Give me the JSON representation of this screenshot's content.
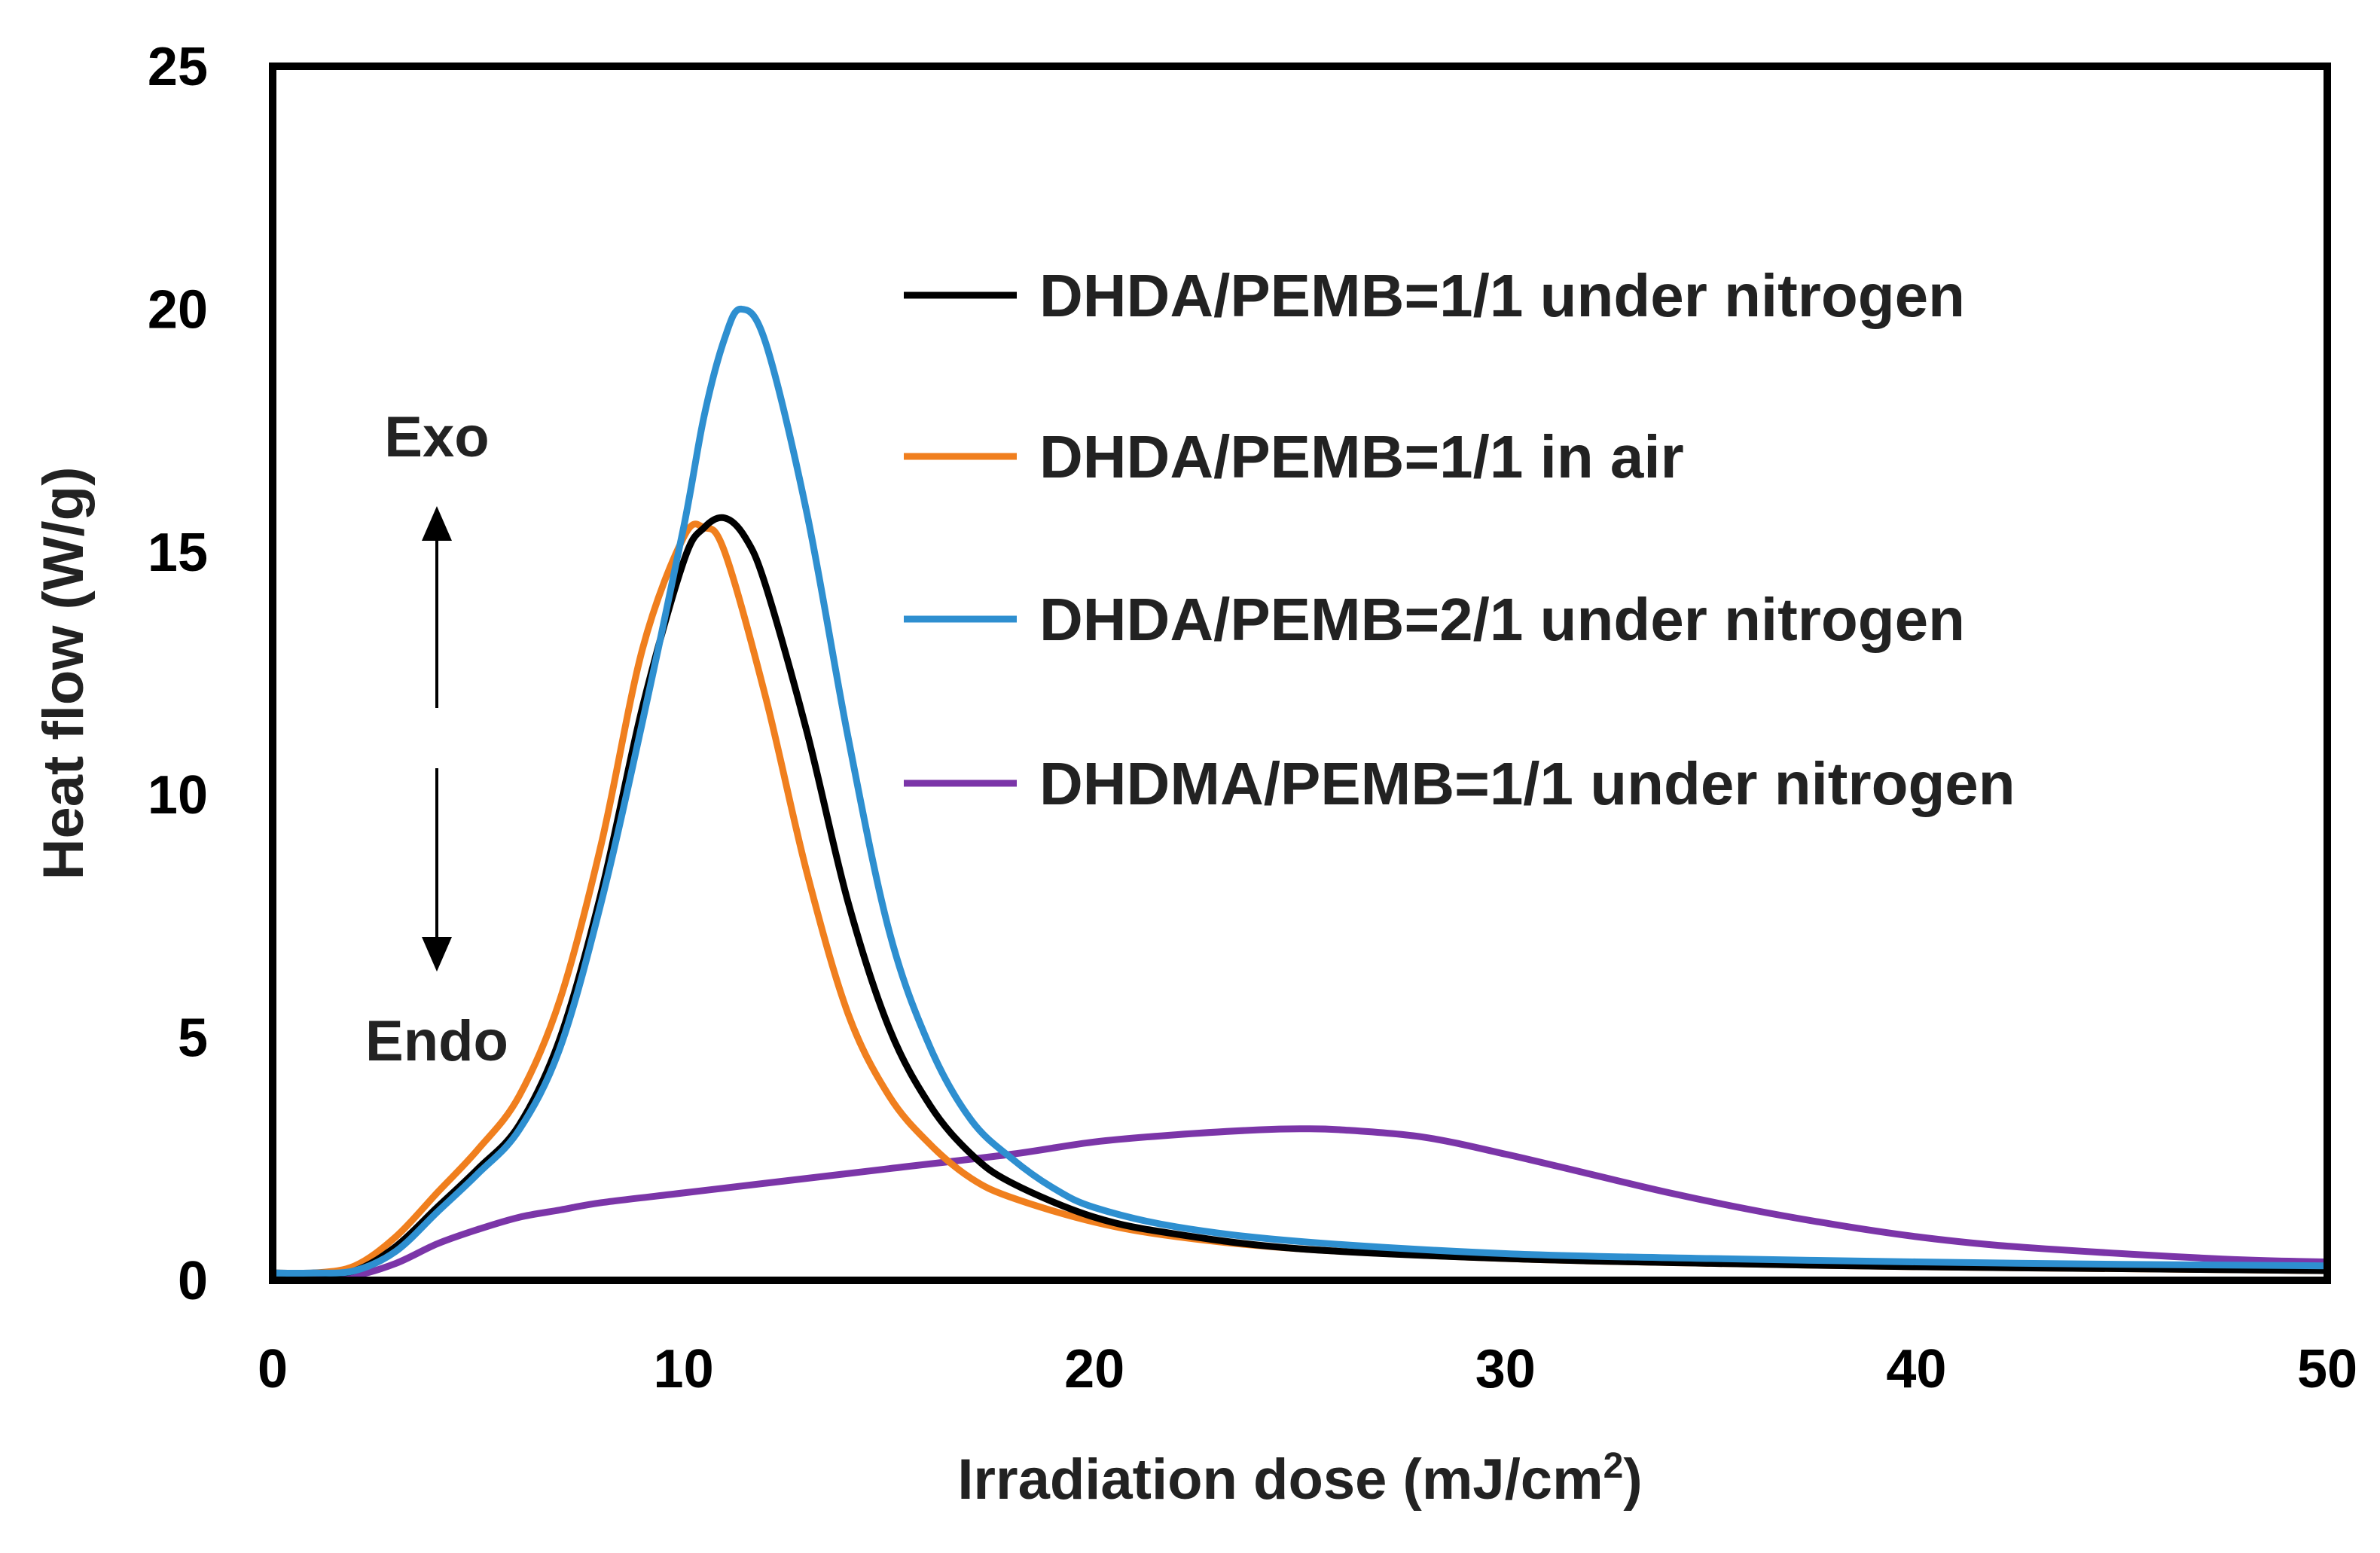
{
  "chart_data": {
    "type": "line",
    "title": "",
    "xlabel_main": "Irradiation dose (mJ/cm",
    "xlabel_sup": "2",
    "xlabel_close": ")",
    "ylabel": "Heat flow (W/g)",
    "xlim": [
      0,
      50
    ],
    "ylim": [
      0,
      25
    ],
    "xticks": [
      0,
      10,
      20,
      30,
      40,
      50
    ],
    "yticks": [
      0,
      5,
      10,
      15,
      20,
      25
    ],
    "grid": false,
    "legend_position": "right",
    "annotations": {
      "exo": "Exo",
      "endo": "Endo"
    },
    "series": [
      {
        "name": "DHDA/PEMB=1/1 under nitrogen",
        "color": "#000000",
        "x": [
          0,
          1,
          2,
          3,
          4,
          5,
          6,
          7,
          8,
          9,
          10,
          10.5,
          11,
          11.5,
          12,
          13,
          14,
          15,
          16,
          17,
          18,
          20,
          22,
          25,
          30,
          35,
          40,
          45,
          50
        ],
        "y": [
          0.15,
          0.15,
          0.2,
          0.7,
          1.5,
          2.3,
          3.2,
          5.0,
          8.0,
          11.8,
          14.8,
          15.5,
          15.7,
          15.3,
          14.3,
          11.3,
          7.8,
          5.2,
          3.6,
          2.6,
          2.0,
          1.3,
          0.95,
          0.65,
          0.45,
          0.35,
          0.28,
          0.24,
          0.2
        ]
      },
      {
        "name": "DHDA/PEMB=1/1 in air",
        "color": "#f07f1e",
        "x": [
          0,
          1,
          2,
          3,
          4,
          5,
          6,
          7,
          8,
          9,
          10,
          10.5,
          11,
          12,
          13,
          14,
          15,
          16,
          17,
          18,
          20,
          22,
          25,
          30,
          35,
          40,
          45,
          50
        ],
        "y": [
          0.15,
          0.15,
          0.3,
          0.9,
          1.8,
          2.7,
          3.8,
          5.8,
          9.0,
          13.0,
          15.3,
          15.5,
          15.0,
          12.0,
          8.4,
          5.5,
          3.8,
          2.8,
          2.1,
          1.7,
          1.2,
          0.9,
          0.65,
          0.45,
          0.35,
          0.28,
          0.24,
          0.2
        ]
      },
      {
        "name": "DHDA/PEMB=2/1 under nitrogen",
        "color": "#2e8fd0",
        "x": [
          0,
          1,
          2,
          3,
          4,
          5,
          6,
          7,
          8,
          9,
          10,
          10.5,
          11,
          11.4,
          12,
          13,
          14,
          15,
          16,
          17,
          18,
          19,
          20,
          22,
          25,
          30,
          35,
          40,
          45,
          50
        ],
        "y": [
          0.15,
          0.15,
          0.2,
          0.6,
          1.4,
          2.2,
          3.1,
          4.8,
          7.8,
          11.5,
          15.5,
          17.8,
          19.4,
          20.0,
          19.3,
          15.8,
          11.2,
          7.2,
          4.8,
          3.3,
          2.5,
          1.9,
          1.5,
          1.1,
          0.8,
          0.55,
          0.45,
          0.38,
          0.33,
          0.3
        ]
      },
      {
        "name": "DHDMA/PEMB=1/1 under nitrogen",
        "color": "#7b35a8",
        "x": [
          0,
          1,
          2,
          3,
          4,
          5,
          6,
          7,
          8,
          10,
          12,
          15,
          18,
          20,
          22,
          24,
          25,
          26,
          28,
          30,
          32,
          34,
          36,
          38,
          40,
          42,
          45,
          48,
          50
        ],
        "y": [
          0.05,
          0.05,
          0.1,
          0.35,
          0.75,
          1.05,
          1.3,
          1.45,
          1.6,
          1.8,
          2.0,
          2.3,
          2.6,
          2.85,
          3.0,
          3.1,
          3.12,
          3.1,
          2.95,
          2.6,
          2.2,
          1.8,
          1.45,
          1.15,
          0.9,
          0.72,
          0.55,
          0.42,
          0.38
        ]
      }
    ]
  }
}
